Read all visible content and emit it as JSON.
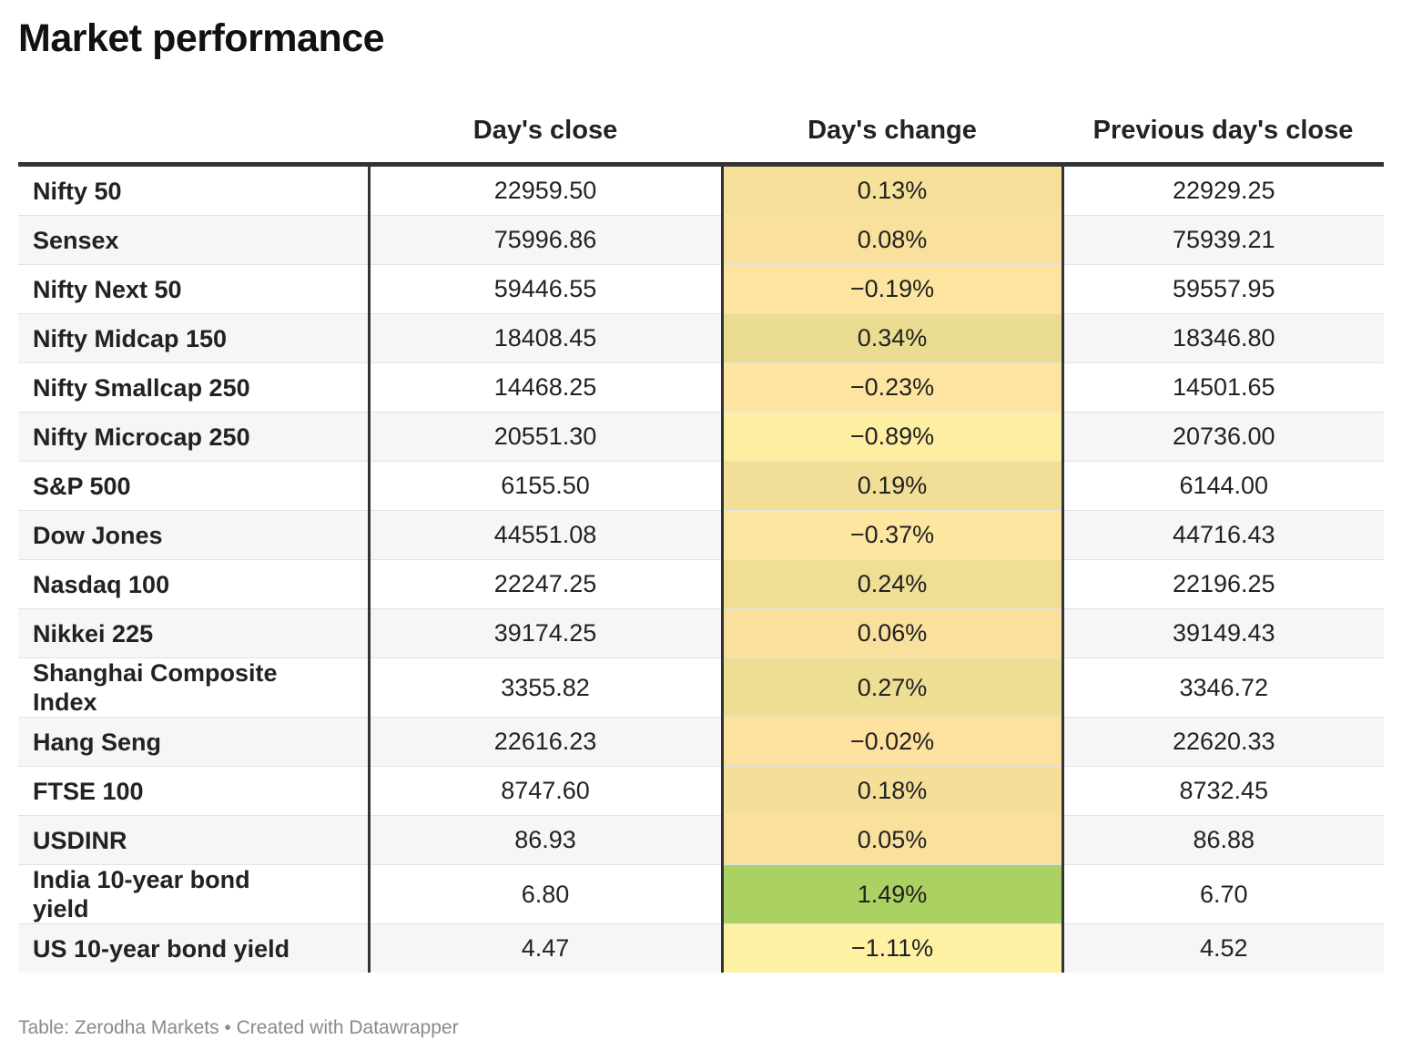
{
  "title": "Market performance",
  "footer": "Table: Zerodha Markets • Created with Datawrapper",
  "colors": {
    "heat_low": "#fef1a3",
    "heat_mid": "#fde19f",
    "heat_high": "#aad162",
    "border": "#333333",
    "zebra": "#f6f6f6"
  },
  "chart_data": {
    "type": "table",
    "columns": [
      "",
      "Day's close",
      "Day's change",
      "Previous day's close"
    ],
    "rows": [
      {
        "name": "Nifty 50",
        "close": "22959.50",
        "change": "0.13%",
        "prev": "22929.25"
      },
      {
        "name": "Sensex",
        "close": "75996.86",
        "change": "0.08%",
        "prev": "75939.21"
      },
      {
        "name": "Nifty Next 50",
        "close": "59446.55",
        "change": "−0.19%",
        "prev": "59557.95"
      },
      {
        "name": "Nifty Midcap 150",
        "close": "18408.45",
        "change": "0.34%",
        "prev": "18346.80"
      },
      {
        "name": "Nifty Smallcap 250",
        "close": "14468.25",
        "change": "−0.23%",
        "prev": "14501.65"
      },
      {
        "name": "Nifty Microcap 250",
        "close": "20551.30",
        "change": "−0.89%",
        "prev": "20736.00"
      },
      {
        "name": "S&P 500",
        "close": "6155.50",
        "change": "0.19%",
        "prev": "6144.00"
      },
      {
        "name": "Dow Jones",
        "close": "44551.08",
        "change": "−0.37%",
        "prev": "44716.43"
      },
      {
        "name": "Nasdaq 100",
        "close": "22247.25",
        "change": "0.24%",
        "prev": "22196.25"
      },
      {
        "name": "Nikkei 225",
        "close": "39174.25",
        "change": "0.06%",
        "prev": "39149.43"
      },
      {
        "name": "Shanghai Composite Index",
        "close": "3355.82",
        "change": "0.27%",
        "prev": "3346.72"
      },
      {
        "name": "Hang Seng",
        "close": "22616.23",
        "change": "−0.02%",
        "prev": "22620.33"
      },
      {
        "name": "FTSE 100",
        "close": "8747.60",
        "change": "0.18%",
        "prev": "8732.45"
      },
      {
        "name": "USDINR",
        "close": "86.93",
        "change": "0.05%",
        "prev": "86.88"
      },
      {
        "name": "India 10-year bond yield",
        "close": "6.80",
        "change": "1.49%",
        "prev": "6.70"
      },
      {
        "name": "US 10-year bond yield",
        "close": "4.47",
        "change": "−1.11%",
        "prev": "4.52"
      }
    ]
  }
}
